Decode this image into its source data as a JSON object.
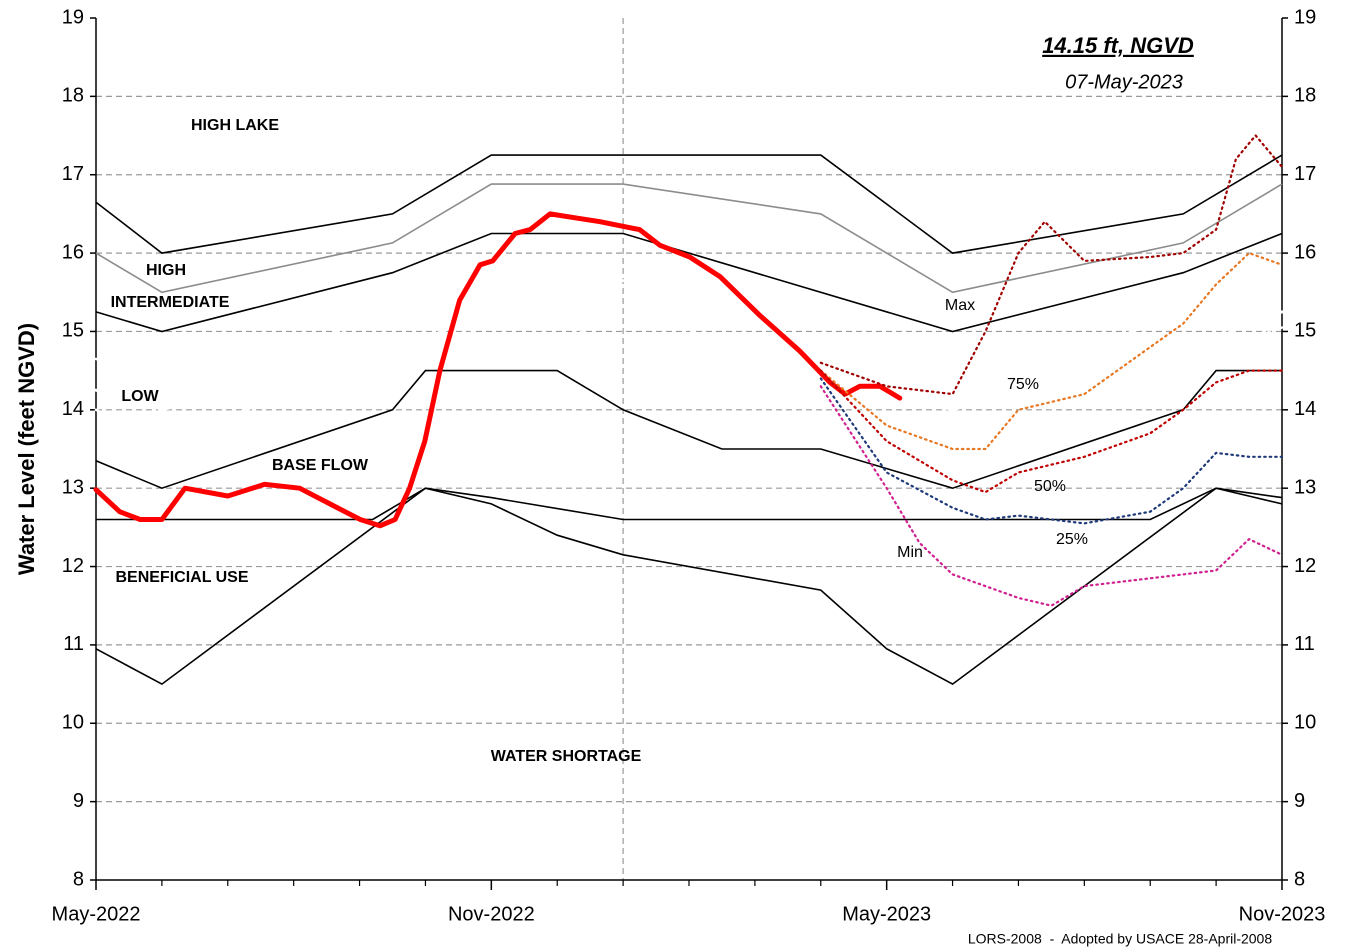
{
  "chart_data": {
    "type": "line",
    "y_label": "Water Level (feet NGVD)",
    "annotation": "14.15 ft, NGVD",
    "annotation_date": "07-May-2023",
    "footnote": "LORS-2008  -  Adopted by USACE 28-April-2008",
    "xlim": [
      0,
      18
    ],
    "xticks": [
      {
        "value": 0,
        "label": "May-2022"
      },
      {
        "value": 6,
        "label": "Nov-2022"
      },
      {
        "value": 12,
        "label": "May-2023"
      },
      {
        "value": 18,
        "label": "Nov-2023"
      }
    ],
    "minor_xticks": [
      1,
      2,
      3,
      4,
      5,
      7,
      8,
      9,
      10,
      11,
      13,
      14,
      15,
      16,
      17
    ],
    "x_grid_lines": [
      8
    ],
    "ylim": [
      8,
      19
    ],
    "yticks": [
      8,
      9,
      10,
      11,
      12,
      13,
      14,
      15,
      16,
      17,
      18,
      19
    ],
    "y2lim": [
      8,
      19
    ],
    "y2ticks": [
      8,
      9,
      10,
      11,
      12,
      13,
      14,
      15,
      16,
      17,
      18,
      19
    ],
    "grid": true,
    "zones": [
      {
        "label": "HIGH LAKE",
        "color": "#d6d6d6"
      },
      {
        "label": "HIGH",
        "color": "#ffc933",
        "line_color": "#000000",
        "x": [
          0,
          1,
          4.5,
          6,
          11,
          13,
          16.5,
          18
        ],
        "values": [
          16.65,
          16.0,
          16.5,
          17.25,
          17.25,
          16.0,
          16.5,
          17.25
        ]
      },
      {
        "label": "INTERMEDIATE",
        "color": "#ffffc0",
        "line_color": "#8c8c8c",
        "x": [
          0,
          1,
          4.5,
          6,
          8,
          11,
          13,
          16.5,
          18
        ],
        "values": [
          16.0,
          15.5,
          16.13,
          16.88,
          16.88,
          16.5,
          15.5,
          16.13,
          16.88
        ]
      },
      {
        "label": "LOW",
        "color": "#c9c9c9",
        "line_color": "#000000",
        "x": [
          0,
          1,
          4.5,
          6,
          8,
          13,
          16.5,
          18
        ],
        "values": [
          15.25,
          15.0,
          15.75,
          16.25,
          16.25,
          15.0,
          15.75,
          16.25
        ]
      },
      {
        "label": "BASE FLOW",
        "color": "#b5e08f",
        "line_color": "#000000",
        "x": [
          0,
          1,
          4.5,
          5,
          7,
          8,
          9.5,
          11,
          13,
          16.5,
          17,
          18
        ],
        "values": [
          13.35,
          13.0,
          14.0,
          14.5,
          14.5,
          14.0,
          13.5,
          13.5,
          13.0,
          14.0,
          14.5,
          14.5
        ]
      },
      {
        "label": "BENEFICIAL USE",
        "color": "#99ccff",
        "line_color": "#000000",
        "x": [
          0,
          4.2,
          5,
          6,
          8,
          16,
          17,
          18
        ],
        "values": [
          12.6,
          12.6,
          13.0,
          12.88,
          12.6,
          12.6,
          13.0,
          12.88
        ]
      },
      {
        "label": "WATER SHORTAGE",
        "color": "#d6d6d6",
        "line_color": "#000000",
        "x": [
          0,
          1,
          5,
          6,
          7,
          8,
          11,
          12,
          13,
          17,
          18
        ],
        "values": [
          10.95,
          10.5,
          13.0,
          12.8,
          12.4,
          12.15,
          11.7,
          10.95,
          10.5,
          13.0,
          12.8
        ]
      }
    ],
    "guides": [
      {
        "style": "dotted",
        "color": "#ffffff",
        "x": [
          0,
          1,
          4.5,
          6,
          8,
          13,
          16.5,
          18
        ],
        "values": [
          14.65,
          14.35,
          15.2,
          15.65,
          15.65,
          14.3,
          15.2,
          15.65
        ]
      },
      {
        "style": "dashed",
        "color": "#ffffff",
        "x": [
          0,
          1,
          4.5,
          6,
          8,
          13,
          16.5,
          18
        ],
        "values": [
          14.25,
          14.0,
          14.75,
          15.25,
          15.25,
          14.0,
          14.75,
          15.25
        ]
      },
      {
        "style": "dotted",
        "color": "#ffffff",
        "x": [
          0,
          1,
          4.5,
          6,
          7,
          8,
          11,
          13,
          16.5,
          18
        ],
        "values": [
          14.0,
          13.65,
          14.6,
          15.1,
          15.1,
          14.8,
          14.15,
          13.6,
          14.6,
          15.05
        ]
      }
    ],
    "series": [
      {
        "color": "#ff0000",
        "style": "solid",
        "x": [
          0,
          0.36,
          0.67,
          1.0,
          1.35,
          2.0,
          2.56,
          3.09,
          3.55,
          4.01,
          4.31,
          4.54,
          4.76,
          4.99,
          5.22,
          5.52,
          5.83,
          6.02,
          6.36,
          6.59,
          6.89,
          7.27,
          7.65,
          7.95,
          8.25,
          8.56,
          9.01,
          9.47,
          10.08,
          10.68,
          11.14,
          11.37,
          11.59,
          11.9,
          12.2
        ],
        "values": [
          12.98,
          12.7,
          12.6,
          12.6,
          13.0,
          12.9,
          13.05,
          13.0,
          12.8,
          12.6,
          12.52,
          12.6,
          13.0,
          13.6,
          14.5,
          15.4,
          15.85,
          15.9,
          16.25,
          16.3,
          16.5,
          16.45,
          16.4,
          16.35,
          16.3,
          16.1,
          15.95,
          15.7,
          15.2,
          14.75,
          14.35,
          14.2,
          14.3,
          14.3,
          14.15
        ]
      },
      {
        "name": "Max",
        "color": "#a00000",
        "style": "dotted",
        "x": [
          11,
          12,
          13,
          13.5,
          14,
          14.4,
          15,
          16,
          16.5,
          17,
          17.3,
          17.6,
          18
        ],
        "values": [
          14.6,
          14.3,
          14.2,
          15.0,
          16.0,
          16.4,
          15.9,
          15.95,
          16.0,
          16.3,
          17.2,
          17.5,
          17.1
        ]
      },
      {
        "name": "75%",
        "color": "#e87722",
        "style": "dotted",
        "x": [
          11,
          12,
          13,
          13.5,
          14,
          15,
          16,
          16.5,
          17,
          17.5,
          18
        ],
        "values": [
          14.5,
          13.8,
          13.5,
          13.5,
          14.0,
          14.2,
          14.8,
          15.1,
          15.6,
          16.0,
          15.85
        ]
      },
      {
        "name": "50%",
        "color": "#c00000",
        "style": "dotted",
        "x": [
          11,
          12,
          13,
          13.5,
          14,
          15,
          16,
          16.5,
          17,
          17.5,
          18
        ],
        "values": [
          14.5,
          13.6,
          13.1,
          12.95,
          13.2,
          13.4,
          13.7,
          14.0,
          14.35,
          14.5,
          14.5
        ]
      },
      {
        "name": "25%",
        "color": "#1f3a7a",
        "style": "dotted",
        "x": [
          11,
          12,
          13,
          13.5,
          14,
          15,
          16,
          16.5,
          17,
          17.5,
          18
        ],
        "values": [
          14.4,
          13.2,
          12.75,
          12.6,
          12.65,
          12.55,
          12.7,
          13.0,
          13.45,
          13.4,
          13.4
        ]
      },
      {
        "name": "Min",
        "color": "#d0208f",
        "style": "dotted",
        "x": [
          11,
          12,
          12.5,
          13,
          14,
          14.5,
          15,
          16,
          17,
          17.5,
          18
        ],
        "values": [
          14.3,
          13.0,
          12.3,
          11.9,
          11.6,
          11.5,
          11.75,
          11.85,
          11.95,
          12.35,
          12.15
        ]
      }
    ]
  }
}
